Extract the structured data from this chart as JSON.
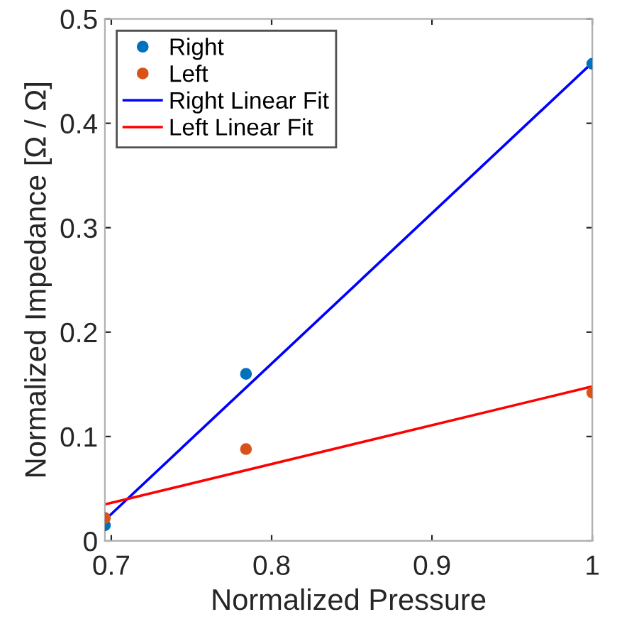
{
  "chart_data": {
    "type": "line",
    "xlabel": "Normalized Pressure",
    "ylabel": "Normalized Impedance [Ω / Ω]",
    "xlim": [
      0.696,
      1.0
    ],
    "ylim": [
      0,
      0.5
    ],
    "xticks": [
      0.7,
      0.8,
      0.9,
      1
    ],
    "yticks": [
      0,
      0.1,
      0.2,
      0.3,
      0.4,
      0.5
    ],
    "grid": false,
    "legend": "top left",
    "series": [
      {
        "name": "Right",
        "type": "scatter",
        "marker": "circle",
        "color": "#0072bd",
        "x": [
          0.696,
          0.784,
          1.0
        ],
        "values": [
          0.015,
          0.16,
          0.457
        ]
      },
      {
        "name": "Left",
        "type": "scatter",
        "marker": "circle",
        "color": "#d95319",
        "x": [
          0.696,
          0.784,
          1.0
        ],
        "values": [
          0.022,
          0.088,
          0.142
        ]
      },
      {
        "name": "Right Linear Fit",
        "color": "#0000ff",
        "x": [
          0.696,
          1.0
        ],
        "values": [
          0.02,
          0.458
        ]
      },
      {
        "name": "Left Linear Fit",
        "color": "#ff0000",
        "x": [
          0.696,
          1.0
        ],
        "values": [
          0.035,
          0.148
        ]
      }
    ]
  }
}
